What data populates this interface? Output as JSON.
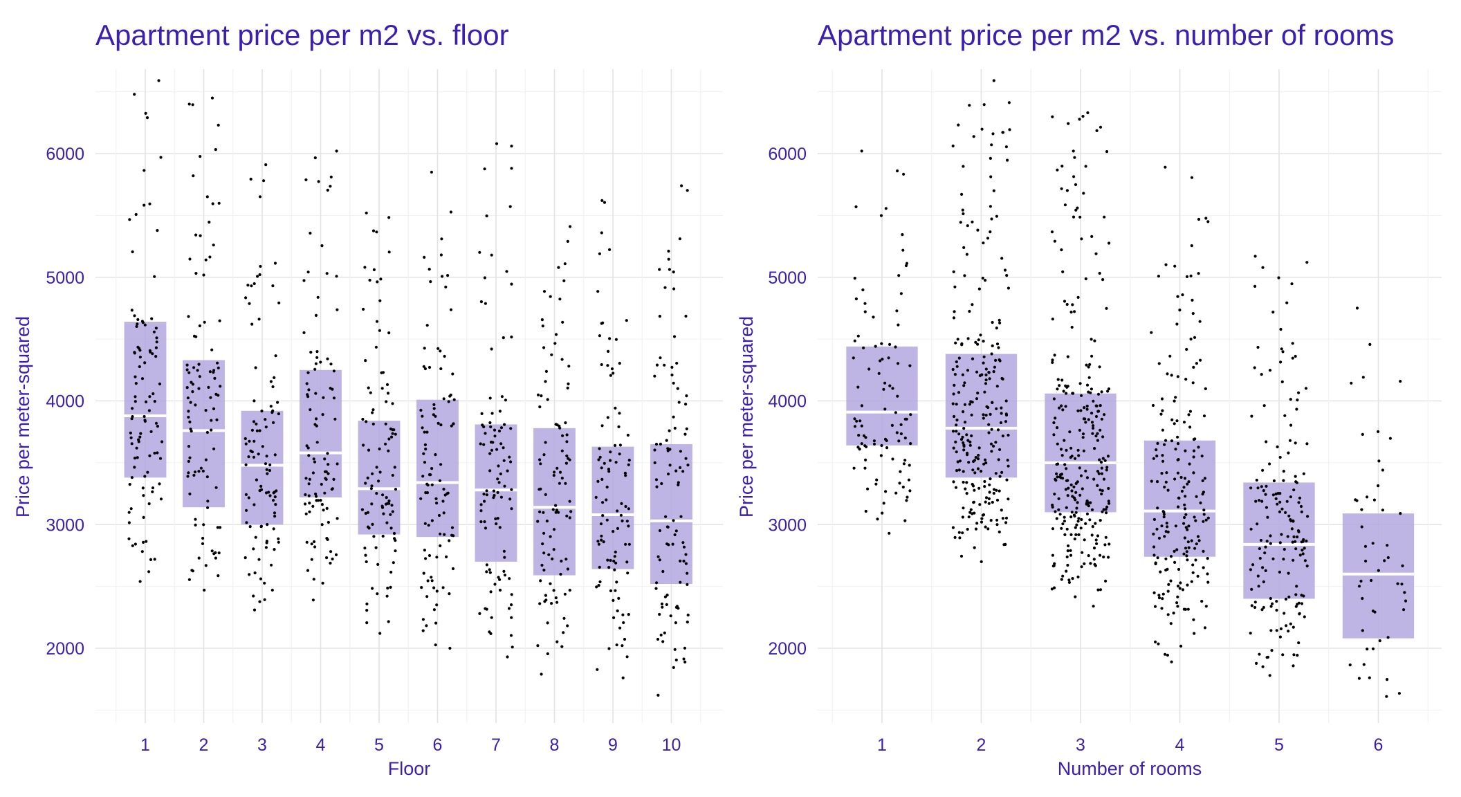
{
  "colors": {
    "accent": "#3a1fb0",
    "box": "#b3a8e0",
    "median": "#ffffff",
    "point": "#000000",
    "grid": "#e3e3e3"
  },
  "chart_data": [
    {
      "type": "boxplot-jitter",
      "title": "Apartment price per m2 vs. floor",
      "xlabel": "Floor",
      "ylabel": "Price per meter-squared",
      "categories": [
        "1",
        "2",
        "3",
        "4",
        "5",
        "6",
        "7",
        "8",
        "9",
        "10"
      ],
      "yticks": [
        "2000",
        "3000",
        "4000",
        "5000",
        "6000"
      ],
      "ylim": [
        1500,
        6650
      ],
      "grid": true,
      "boxes": [
        {
          "category": "1",
          "q1": 3380,
          "median": 3880,
          "q3": 4640,
          "min": 2540,
          "max": 6590,
          "n": 100
        },
        {
          "category": "2",
          "q1": 3140,
          "median": 3760,
          "q3": 4330,
          "min": 2470,
          "max": 6450,
          "n": 100
        },
        {
          "category": "3",
          "q1": 3000,
          "median": 3480,
          "q3": 3920,
          "min": 2310,
          "max": 5910,
          "n": 100
        },
        {
          "category": "4",
          "q1": 3220,
          "median": 3580,
          "q3": 4250,
          "min": 2390,
          "max": 6020,
          "n": 100
        },
        {
          "category": "5",
          "q1": 2920,
          "median": 3290,
          "q3": 3840,
          "min": 2120,
          "max": 5520,
          "n": 100
        },
        {
          "category": "6",
          "q1": 2900,
          "median": 3340,
          "q3": 4010,
          "min": 2000,
          "max": 5850,
          "n": 100
        },
        {
          "category": "7",
          "q1": 2700,
          "median": 3280,
          "q3": 3810,
          "min": 1930,
          "max": 6080,
          "n": 100
        },
        {
          "category": "8",
          "q1": 2590,
          "median": 3140,
          "q3": 3780,
          "min": 1790,
          "max": 5410,
          "n": 100
        },
        {
          "category": "9",
          "q1": 2640,
          "median": 3080,
          "q3": 3630,
          "min": 1760,
          "max": 5620,
          "n": 100
        },
        {
          "category": "10",
          "q1": 2520,
          "median": 3030,
          "q3": 3650,
          "min": 1620,
          "max": 5740,
          "n": 100
        }
      ]
    },
    {
      "type": "boxplot-jitter",
      "title": "Apartment price per m2 vs. number of rooms",
      "xlabel": "Number of rooms",
      "ylabel": "Price per meter-squared",
      "categories": [
        "1",
        "2",
        "3",
        "4",
        "5",
        "6"
      ],
      "yticks": [
        "2000",
        "3000",
        "4000",
        "5000",
        "6000"
      ],
      "ylim": [
        1500,
        6650
      ],
      "grid": true,
      "boxes": [
        {
          "category": "1",
          "q1": 3640,
          "median": 3910,
          "q3": 4440,
          "min": 2930,
          "max": 6020,
          "n": 100
        },
        {
          "category": "2",
          "q1": 3380,
          "median": 3780,
          "q3": 4380,
          "min": 2700,
          "max": 6590,
          "n": 250
        },
        {
          "category": "3",
          "q1": 3100,
          "median": 3500,
          "q3": 4060,
          "min": 2340,
          "max": 6330,
          "n": 280
        },
        {
          "category": "4",
          "q1": 2740,
          "median": 3110,
          "q3": 3680,
          "min": 1890,
          "max": 5890,
          "n": 200
        },
        {
          "category": "5",
          "q1": 2400,
          "median": 2840,
          "q3": 3340,
          "min": 1780,
          "max": 5170,
          "n": 170
        },
        {
          "category": "6",
          "q1": 2080,
          "median": 2600,
          "q3": 3090,
          "min": 1610,
          "max": 4750,
          "n": 50
        }
      ]
    }
  ]
}
